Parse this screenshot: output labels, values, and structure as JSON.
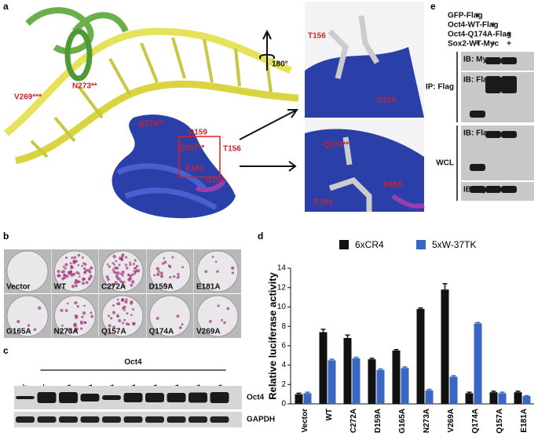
{
  "panel_labels": [
    "a",
    "b",
    "c",
    "d",
    "e"
  ],
  "panel_a": {
    "residue_labels": [
      "V269***",
      "N273**",
      "Q174**",
      "D159",
      "Q157**",
      "T156",
      "E181",
      "R150"
    ],
    "rotation_label": "180°",
    "inset_top_labels": [
      "T156",
      "D159"
    ],
    "inset_bottom_labels": [
      "Q174**",
      "R150",
      "E181"
    ]
  },
  "panel_b": {
    "plates": [
      "Vector",
      "WT",
      "C272A",
      "D159A",
      "E181A",
      "G165A",
      "N273A",
      "Q157A",
      "Q174A",
      "V269A"
    ]
  },
  "panel_c": {
    "group_label": "Oct4",
    "lanes": [
      "Vector",
      "WT",
      "C272A",
      "D159A",
      "E181A",
      "G165A",
      "N273A",
      "Q157A",
      "Q174A",
      "V269A"
    ],
    "bands": [
      "Oct4",
      "GAPDH"
    ]
  },
  "panel_e": {
    "treatments": [
      {
        "label": "GFP-Flag",
        "lanes": [
          "+",
          null,
          null
        ]
      },
      {
        "label": "Oct4-WT-Flag",
        "lanes": [
          null,
          "+",
          null
        ]
      },
      {
        "label": "Oct4-Q174A-Flag",
        "lanes": [
          null,
          null,
          "+"
        ]
      },
      {
        "label": "Sox2-WT-Myc",
        "lanes": [
          "+",
          "+",
          "+"
        ]
      }
    ],
    "groups": [
      {
        "label": "IP: Flag",
        "blots": [
          "IB: Myc",
          "IB: Flag"
        ]
      },
      {
        "label": "WCL",
        "blots": [
          "IB: Flag",
          "IB: Myc"
        ]
      }
    ]
  },
  "chart_data": {
    "type": "bar",
    "y_label": "Relative luciferase activity",
    "categories": [
      "Vector",
      "WT",
      "C272A",
      "D159A",
      "G165A",
      "N273A",
      "V269A",
      "Q174A",
      "Q157A",
      "E181A"
    ],
    "series": [
      {
        "name": "6xCR4",
        "color": "#111111",
        "values": [
          1.0,
          7.4,
          6.8,
          4.6,
          5.5,
          9.8,
          11.8,
          1.1,
          1.2,
          1.2
        ],
        "errors": [
          0.1,
          0.3,
          0.3,
          0.1,
          0.1,
          0.1,
          0.6,
          0.1,
          0.1,
          0.1
        ]
      },
      {
        "name": "5xW-37TK",
        "color": "#3a67c4",
        "values": [
          1.1,
          4.5,
          4.7,
          3.5,
          3.7,
          1.4,
          2.8,
          8.3,
          1.1,
          0.8
        ],
        "errors": [
          0.1,
          0.1,
          0.1,
          0.1,
          0.1,
          0.1,
          0.1,
          0.1,
          0.1,
          0.05
        ]
      }
    ],
    "ylim": [
      0,
      14
    ],
    "yticks": [
      0,
      2,
      4,
      6,
      8,
      10,
      12,
      14
    ],
    "legend": "top"
  }
}
